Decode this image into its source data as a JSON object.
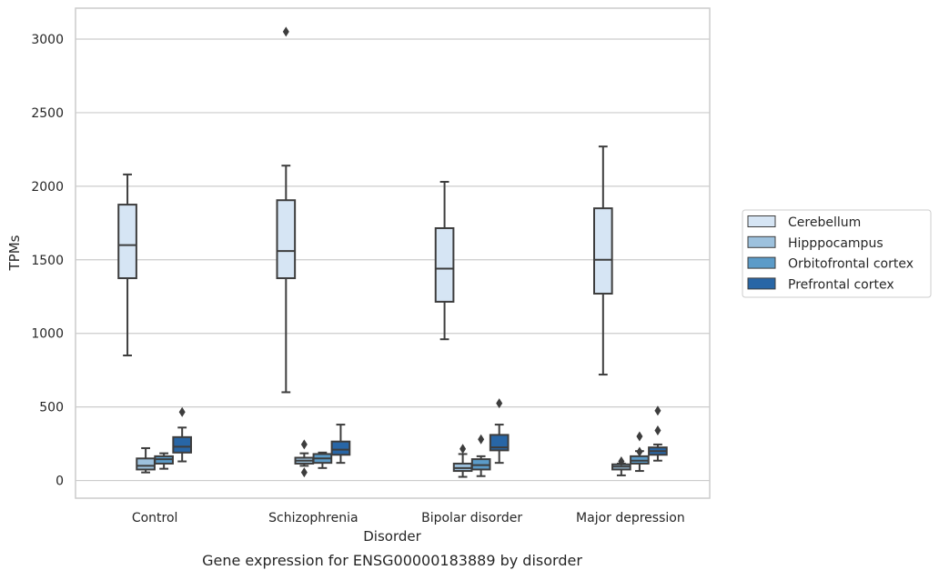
{
  "chart_data": {
    "type": "box",
    "title": "Gene expression for ENSG00000183889 by disorder",
    "xlabel": "Disorder",
    "ylabel": "TPMs",
    "ylim": [
      -120,
      3210
    ],
    "yticks": [
      0,
      500,
      1000,
      1500,
      2000,
      2500,
      3000
    ],
    "grid": "horizontal",
    "legend_position": "right",
    "categories": [
      "Control",
      "Schizophrenia",
      "Bipolar disorder",
      "Major depression"
    ],
    "series": [
      {
        "name": "Cerebellum",
        "color": "#d6e5f4",
        "boxes": [
          {
            "min": 850,
            "q1": 1375,
            "median": 1600,
            "q3": 1875,
            "max": 2080,
            "outliers": []
          },
          {
            "min": 600,
            "q1": 1375,
            "median": 1560,
            "q3": 1905,
            "max": 2140,
            "outliers": [
              3050
            ]
          },
          {
            "min": 960,
            "q1": 1215,
            "median": 1440,
            "q3": 1715,
            "max": 2030,
            "outliers": []
          },
          {
            "min": 720,
            "q1": 1270,
            "median": 1500,
            "q3": 1850,
            "max": 2270,
            "outliers": []
          }
        ]
      },
      {
        "name": "Hipppocampus",
        "color": "#9dc1dd",
        "boxes": [
          {
            "min": 55,
            "q1": 75,
            "median": 100,
            "q3": 150,
            "max": 220,
            "outliers": []
          },
          {
            "min": 100,
            "q1": 115,
            "median": 135,
            "q3": 155,
            "max": 185,
            "outliers": [
              245,
              55
            ]
          },
          {
            "min": 25,
            "q1": 65,
            "median": 85,
            "q3": 115,
            "max": 180,
            "outliers": [
              215
            ]
          },
          {
            "min": 35,
            "q1": 75,
            "median": 95,
            "q3": 110,
            "max": 115,
            "outliers": [
              130
            ]
          }
        ]
      },
      {
        "name": "Orbitofrontal cortex",
        "color": "#5b9bc8",
        "boxes": [
          {
            "min": 80,
            "q1": 115,
            "median": 145,
            "q3": 165,
            "max": 185,
            "outliers": []
          },
          {
            "min": 85,
            "q1": 120,
            "median": 150,
            "q3": 180,
            "max": 190,
            "outliers": []
          },
          {
            "min": 30,
            "q1": 75,
            "median": 105,
            "q3": 145,
            "max": 165,
            "outliers": [
              280
            ]
          },
          {
            "min": 65,
            "q1": 115,
            "median": 135,
            "q3": 165,
            "max": 200,
            "outliers": [
              300,
              195
            ]
          }
        ]
      },
      {
        "name": "Prefrontal cortex",
        "color": "#2866a6",
        "boxes": [
          {
            "min": 130,
            "q1": 190,
            "median": 230,
            "q3": 295,
            "max": 360,
            "outliers": [
              465
            ]
          },
          {
            "min": 120,
            "q1": 175,
            "median": 210,
            "q3": 265,
            "max": 380,
            "outliers": []
          },
          {
            "min": 120,
            "q1": 205,
            "median": 225,
            "q3": 310,
            "max": 380,
            "outliers": [
              525
            ]
          },
          {
            "min": 135,
            "q1": 175,
            "median": 200,
            "q3": 225,
            "max": 245,
            "outliers": [
              475,
              340
            ]
          }
        ]
      }
    ]
  }
}
